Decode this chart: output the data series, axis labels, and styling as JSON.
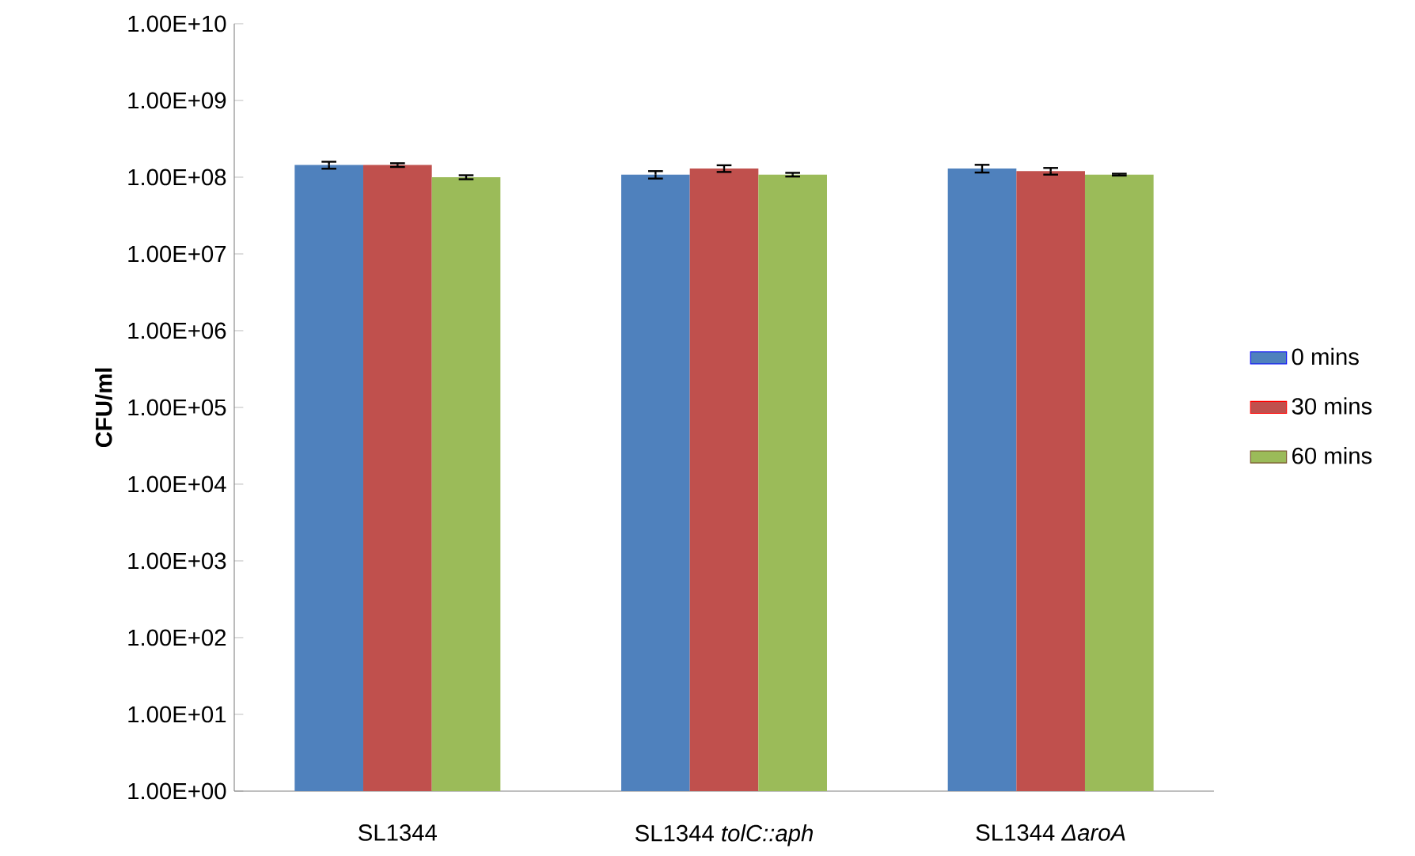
{
  "chart_data": {
    "type": "bar",
    "ylabel": "CFU/ml",
    "log": "y",
    "legend": "right",
    "grid": false,
    "categories": [
      "SL1344",
      "SL1344 *tolC::aph*",
      "SL1344 *ΔaroA*"
    ],
    "ylim": [
      1,
      10000000000
    ],
    "yticks": [
      {
        "value": 1,
        "label": "1.00E+00"
      },
      {
        "value": 10,
        "label": "1.00E+01"
      },
      {
        "value": 100,
        "label": "1.00E+02"
      },
      {
        "value": 1000,
        "label": "1.00E+03"
      },
      {
        "value": 10000,
        "label": "1.00E+04"
      },
      {
        "value": 100000,
        "label": "1.00E+05"
      },
      {
        "value": 1000000,
        "label": "1.00E+06"
      },
      {
        "value": 10000000,
        "label": "1.00E+07"
      },
      {
        "value": 100000000,
        "label": "1.00E+08"
      },
      {
        "value": 1000000000,
        "label": "1.00E+09"
      },
      {
        "value": 10000000000,
        "label": "1.00E+10"
      }
    ],
    "series": [
      {
        "name": "0 mins",
        "color": "#4f81bd",
        "values": [
          144000000,
          108000000,
          130000000
        ],
        "errors": [
          15000000,
          12000000,
          15000000
        ]
      },
      {
        "name": "30 mins",
        "color": "#c0504d",
        "values": [
          144000000,
          130000000,
          120000000
        ],
        "errors": [
          8000000,
          13000000,
          12000000
        ]
      },
      {
        "name": "60 mins",
        "color": "#9bbb59",
        "values": [
          100000000,
          108000000,
          108000000
        ],
        "errors": [
          6000000,
          6000000,
          3000000
        ]
      }
    ]
  }
}
